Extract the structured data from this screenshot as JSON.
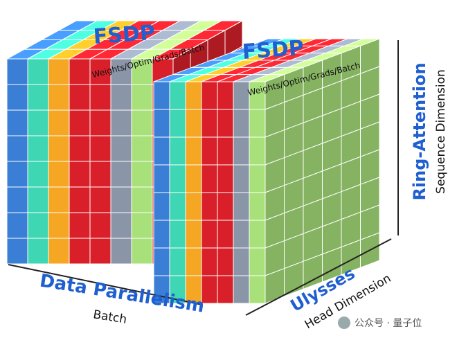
{
  "back_block": {
    "label": "FSDP",
    "sublabel": "Weights/Optim/Grads/Batch"
  },
  "front_block": {
    "label": "FSDP",
    "sublabel": "Weights/Optim/Grads/Batch"
  },
  "vertical_axis": {
    "label": "Ring-Attention",
    "sublabel": "Sequence Dimension"
  },
  "horizontal_axis": {
    "label": "Data Parallelism",
    "sublabel": "Batch"
  },
  "depth_axis": {
    "label": "Ulysses",
    "sublabel": "Head Dimension"
  },
  "watermark": "公众号 · 量子位"
}
